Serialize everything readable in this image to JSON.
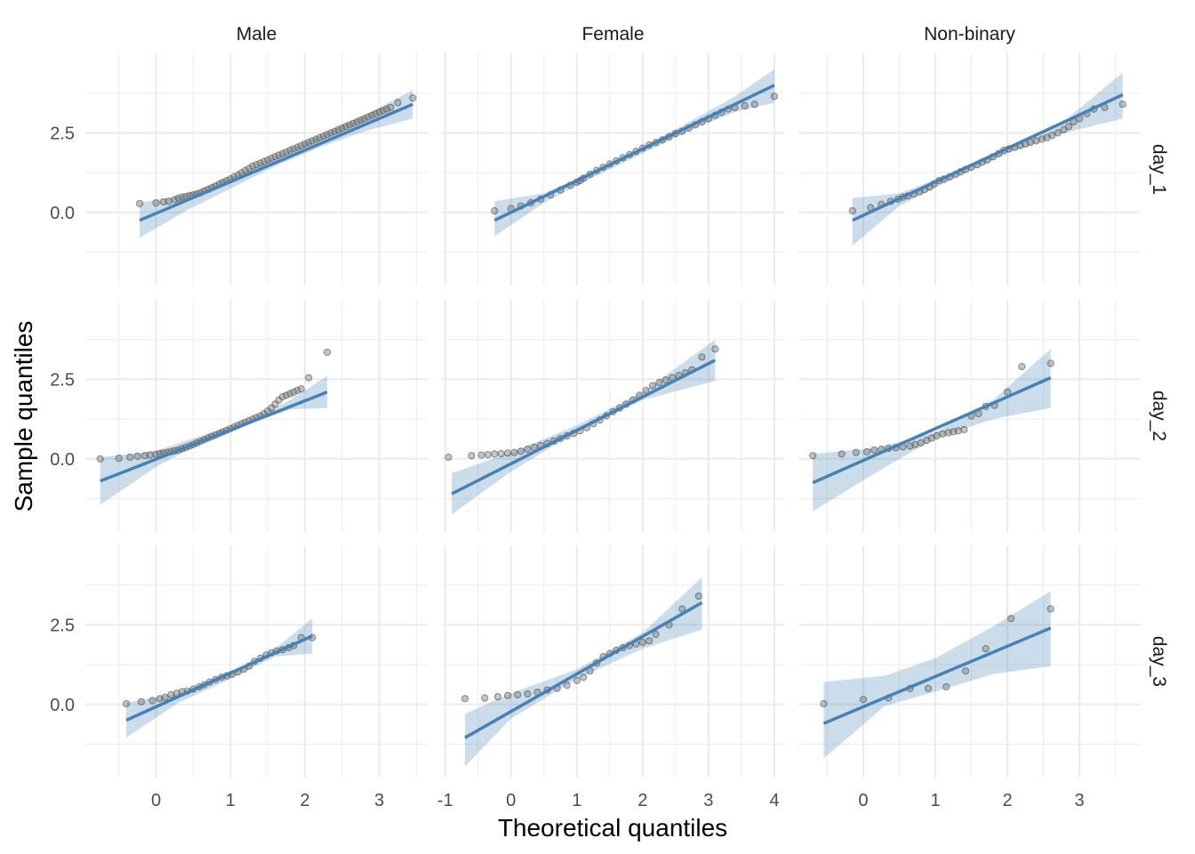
{
  "chart_data": {
    "type": "scatter",
    "subtype": "faceted-qq-plot",
    "xlabel": "Theoretical quantiles",
    "ylabel": "Sample quantiles",
    "col_facets": [
      "Male",
      "Female",
      "Non-binary"
    ],
    "row_facets": [
      "day_1",
      "day_2",
      "day_3"
    ],
    "grid": true,
    "free_x": true,
    "ylim": [
      -2.3,
      5.0
    ],
    "y_ticks": [
      0.0,
      2.5
    ],
    "y_tick_labels": [
      "0.0",
      "2.5"
    ],
    "colors": {
      "points": "#7f7f7f",
      "line": "#4682b4",
      "band": "#4682b4",
      "grid": "#ebebeb"
    },
    "columns": [
      {
        "xlim": [
          -0.95,
          3.65
        ],
        "x_ticks": [
          0,
          1,
          2,
          3
        ],
        "x_tick_labels": [
          "0",
          "1",
          "2",
          "3"
        ]
      },
      {
        "xlim": [
          -1.05,
          4.15
        ],
        "x_ticks": [
          -1,
          0,
          1,
          2,
          3,
          4
        ],
        "x_tick_labels": [
          "-1",
          "0",
          "1",
          "2",
          "3",
          "4"
        ]
      },
      {
        "xlim": [
          -0.9,
          3.85
        ],
        "x_ticks": [
          0,
          1,
          2,
          3
        ],
        "x_tick_labels": [
          "0",
          "1",
          "2",
          "3"
        ]
      }
    ],
    "panels": [
      {
        "col": "Male",
        "row": "day_1",
        "line": {
          "x": [
            -0.22,
            3.45
          ],
          "y": [
            -0.25,
            3.4
          ]
        },
        "band": {
          "x": [
            -0.22,
            0.4,
            1.0,
            1.6,
            2.2,
            2.8,
            3.45
          ],
          "lower": [
            -0.8,
            0.05,
            0.75,
            1.45,
            2.05,
            2.55,
            2.95
          ],
          "upper": [
            0.3,
            0.55,
            1.1,
            1.75,
            2.4,
            3.05,
            3.85
          ]
        },
        "points": {
          "x": [
            -0.22,
            0.0,
            0.1,
            0.17,
            0.25,
            0.3,
            0.35,
            0.4,
            0.45,
            0.5,
            0.55,
            0.6,
            0.65,
            0.7,
            0.75,
            0.8,
            0.85,
            0.9,
            0.95,
            1.0,
            1.05,
            1.1,
            1.15,
            1.2,
            1.25,
            1.3,
            1.35,
            1.4,
            1.45,
            1.5,
            1.55,
            1.6,
            1.65,
            1.7,
            1.75,
            1.8,
            1.85,
            1.9,
            1.95,
            2.0,
            2.05,
            2.1,
            2.15,
            2.2,
            2.25,
            2.3,
            2.35,
            2.4,
            2.45,
            2.5,
            2.55,
            2.6,
            2.65,
            2.7,
            2.75,
            2.8,
            2.85,
            2.9,
            2.95,
            3.0,
            3.05,
            3.1,
            3.15,
            3.25,
            3.45
          ],
          "y": [
            0.28,
            0.3,
            0.33,
            0.35,
            0.4,
            0.45,
            0.48,
            0.5,
            0.53,
            0.55,
            0.58,
            0.62,
            0.68,
            0.72,
            0.78,
            0.83,
            0.9,
            0.95,
            1.0,
            1.05,
            1.12,
            1.18,
            1.25,
            1.32,
            1.38,
            1.45,
            1.5,
            1.55,
            1.6,
            1.65,
            1.7,
            1.75,
            1.8,
            1.85,
            1.9,
            1.95,
            2.0,
            2.05,
            2.1,
            2.15,
            2.2,
            2.25,
            2.3,
            2.35,
            2.4,
            2.45,
            2.5,
            2.55,
            2.6,
            2.65,
            2.7,
            2.75,
            2.8,
            2.85,
            2.9,
            2.95,
            3.0,
            3.05,
            3.1,
            3.15,
            3.2,
            3.25,
            3.3,
            3.45,
            3.6
          ]
        }
      },
      {
        "col": "Female",
        "row": "day_1",
        "line": {
          "x": [
            -0.25,
            4.0
          ],
          "y": [
            -0.25,
            4.0
          ]
        },
        "band": {
          "x": [
            -0.25,
            0.5,
            1.2,
            2.0,
            2.8,
            3.4,
            4.0
          ],
          "lower": [
            -0.75,
            0.3,
            1.05,
            1.85,
            2.65,
            3.15,
            3.45
          ],
          "upper": [
            0.35,
            0.6,
            1.25,
            2.05,
            2.95,
            3.65,
            4.5
          ]
        },
        "points": {
          "x": [
            -0.25,
            0.0,
            0.15,
            0.3,
            0.45,
            0.6,
            0.75,
            0.9,
            1.0,
            1.05,
            1.1,
            1.2,
            1.3,
            1.4,
            1.5,
            1.6,
            1.7,
            1.8,
            1.9,
            2.0,
            2.1,
            2.2,
            2.3,
            2.4,
            2.5,
            2.6,
            2.7,
            2.8,
            2.9,
            3.0,
            3.1,
            3.2,
            3.3,
            3.4,
            3.55,
            3.7,
            4.0
          ],
          "y": [
            0.05,
            0.12,
            0.2,
            0.3,
            0.42,
            0.55,
            0.7,
            0.85,
            0.95,
            1.0,
            1.08,
            1.2,
            1.32,
            1.42,
            1.52,
            1.62,
            1.72,
            1.82,
            1.92,
            2.02,
            2.12,
            2.2,
            2.28,
            2.38,
            2.48,
            2.55,
            2.65,
            2.75,
            2.85,
            2.95,
            3.05,
            3.15,
            3.25,
            3.3,
            3.35,
            3.4,
            3.65
          ]
        }
      },
      {
        "col": "Non-binary",
        "row": "day_1",
        "line": {
          "x": [
            -0.15,
            3.6
          ],
          "y": [
            -0.25,
            3.7
          ]
        },
        "band": {
          "x": [
            -0.15,
            0.5,
            1.2,
            2.0,
            2.7,
            3.6
          ],
          "lower": [
            -1.05,
            0.2,
            1.0,
            1.85,
            2.45,
            2.95
          ],
          "upper": [
            0.45,
            0.6,
            1.2,
            2.05,
            2.7,
            4.4
          ]
        },
        "points": {
          "x": [
            -0.15,
            0.1,
            0.25,
            0.38,
            0.48,
            0.55,
            0.62,
            0.7,
            0.78,
            0.85,
            0.92,
            0.98,
            1.05,
            1.12,
            1.2,
            1.28,
            1.35,
            1.42,
            1.5,
            1.58,
            1.65,
            1.72,
            1.8,
            1.88,
            1.95,
            2.02,
            2.1,
            2.18,
            2.25,
            2.32,
            2.4,
            2.48,
            2.55,
            2.62,
            2.7,
            2.78,
            2.85,
            2.92,
            3.0,
            3.1,
            3.2,
            3.35,
            3.6
          ],
          "y": [
            0.05,
            0.15,
            0.25,
            0.35,
            0.42,
            0.48,
            0.52,
            0.58,
            0.65,
            0.72,
            0.8,
            0.9,
            1.0,
            1.05,
            1.12,
            1.2,
            1.28,
            1.35,
            1.42,
            1.5,
            1.58,
            1.65,
            1.75,
            1.85,
            1.95,
            2.0,
            2.05,
            2.1,
            2.15,
            2.2,
            2.25,
            2.3,
            2.35,
            2.42,
            2.5,
            2.6,
            2.7,
            2.85,
            2.95,
            3.1,
            3.25,
            3.3,
            3.4
          ]
        }
      },
      {
        "col": "Male",
        "row": "day_2",
        "line": {
          "x": [
            -0.75,
            2.3
          ],
          "y": [
            -0.7,
            2.1
          ]
        },
        "band": {
          "x": [
            -0.75,
            0.0,
            0.7,
            1.2,
            1.8,
            2.3
          ],
          "lower": [
            -1.45,
            -0.25,
            0.6,
            1.05,
            1.55,
            1.6
          ],
          "upper": [
            0.05,
            0.25,
            0.8,
            1.15,
            1.85,
            2.6
          ]
        },
        "points": {
          "x": [
            -0.75,
            -0.5,
            -0.35,
            -0.25,
            -0.15,
            -0.08,
            0.0,
            0.05,
            0.1,
            0.15,
            0.2,
            0.25,
            0.3,
            0.35,
            0.4,
            0.45,
            0.5,
            0.55,
            0.6,
            0.65,
            0.7,
            0.75,
            0.8,
            0.85,
            0.9,
            0.95,
            1.0,
            1.05,
            1.1,
            1.15,
            1.2,
            1.25,
            1.3,
            1.35,
            1.4,
            1.45,
            1.5,
            1.55,
            1.6,
            1.65,
            1.7,
            1.75,
            1.8,
            1.85,
            1.9,
            1.95,
            2.05,
            2.3
          ],
          "y": [
            0.0,
            0.02,
            0.05,
            0.08,
            0.1,
            0.12,
            0.14,
            0.16,
            0.18,
            0.2,
            0.22,
            0.25,
            0.28,
            0.32,
            0.36,
            0.4,
            0.45,
            0.5,
            0.55,
            0.6,
            0.65,
            0.7,
            0.75,
            0.8,
            0.85,
            0.9,
            0.95,
            1.0,
            1.05,
            1.1,
            1.15,
            1.2,
            1.25,
            1.3,
            1.35,
            1.42,
            1.5,
            1.6,
            1.72,
            1.85,
            1.95,
            2.0,
            2.05,
            2.1,
            2.15,
            2.2,
            2.55,
            3.35
          ]
        }
      },
      {
        "col": "Female",
        "row": "day_2",
        "line": {
          "x": [
            -0.9,
            3.1
          ],
          "y": [
            -1.1,
            3.1
          ]
        },
        "band": {
          "x": [
            -0.9,
            0.0,
            1.0,
            2.0,
            3.1
          ],
          "lower": [
            -1.75,
            -0.4,
            0.85,
            1.85,
            2.45
          ],
          "upper": [
            -0.45,
            0.2,
            1.05,
            2.1,
            3.75
          ]
        },
        "points": {
          "x": [
            -0.95,
            -0.6,
            -0.45,
            -0.35,
            -0.25,
            -0.15,
            -0.05,
            0.05,
            0.15,
            0.25,
            0.35,
            0.45,
            0.55,
            0.65,
            0.75,
            0.85,
            0.95,
            1.05,
            1.15,
            1.25,
            1.35,
            1.45,
            1.55,
            1.65,
            1.75,
            1.85,
            1.95,
            2.05,
            2.15,
            2.25,
            2.35,
            2.45,
            2.55,
            2.65,
            2.75,
            2.9,
            3.1
          ],
          "y": [
            0.05,
            0.1,
            0.12,
            0.13,
            0.15,
            0.16,
            0.18,
            0.2,
            0.24,
            0.3,
            0.36,
            0.42,
            0.48,
            0.56,
            0.64,
            0.72,
            0.8,
            0.88,
            0.98,
            1.1,
            1.22,
            1.35,
            1.48,
            1.6,
            1.72,
            1.85,
            2.0,
            2.15,
            2.3,
            2.4,
            2.48,
            2.55,
            2.62,
            2.7,
            2.8,
            3.2,
            3.45
          ]
        }
      },
      {
        "col": "Non-binary",
        "row": "day_2",
        "line": {
          "x": [
            -0.7,
            2.6
          ],
          "y": [
            -0.75,
            2.55
          ]
        },
        "band": {
          "x": [
            -0.7,
            0.2,
            1.0,
            1.8,
            2.6
          ],
          "lower": [
            -1.65,
            -0.4,
            0.65,
            1.25,
            1.6
          ],
          "upper": [
            0.15,
            0.35,
            0.85,
            1.85,
            3.45
          ]
        },
        "points": {
          "x": [
            -0.7,
            -0.3,
            -0.1,
            0.05,
            0.15,
            0.25,
            0.35,
            0.45,
            0.55,
            0.65,
            0.72,
            0.8,
            0.88,
            0.95,
            1.02,
            1.1,
            1.18,
            1.25,
            1.32,
            1.4,
            1.5,
            1.6,
            1.7,
            1.82,
            2.0,
            2.2,
            2.6
          ],
          "y": [
            0.1,
            0.15,
            0.2,
            0.22,
            0.28,
            0.3,
            0.33,
            0.35,
            0.38,
            0.4,
            0.45,
            0.5,
            0.58,
            0.65,
            0.72,
            0.78,
            0.82,
            0.85,
            0.88,
            0.92,
            1.35,
            1.42,
            1.65,
            1.68,
            2.1,
            2.9,
            3.0
          ]
        }
      },
      {
        "col": "Male",
        "row": "day_3",
        "line": {
          "x": [
            -0.4,
            2.1
          ],
          "y": [
            -0.5,
            2.15
          ]
        },
        "band": {
          "x": [
            -0.4,
            0.3,
            1.0,
            1.6,
            2.1
          ],
          "lower": [
            -1.05,
            0.05,
            0.8,
            1.5,
            1.6
          ],
          "upper": [
            0.05,
            0.35,
            1.0,
            1.75,
            2.7
          ]
        },
        "points": {
          "x": [
            -0.4,
            -0.2,
            -0.05,
            0.05,
            0.12,
            0.2,
            0.28,
            0.35,
            0.42,
            0.5,
            0.58,
            0.65,
            0.72,
            0.8,
            0.88,
            0.95,
            1.02,
            1.1,
            1.18,
            1.25,
            1.32,
            1.4,
            1.48,
            1.55,
            1.62,
            1.7,
            1.78,
            1.85,
            1.95,
            2.1
          ],
          "y": [
            0.02,
            0.08,
            0.12,
            0.18,
            0.22,
            0.3,
            0.35,
            0.4,
            0.42,
            0.48,
            0.55,
            0.62,
            0.7,
            0.78,
            0.85,
            0.9,
            0.95,
            1.02,
            1.1,
            1.2,
            1.35,
            1.45,
            1.55,
            1.62,
            1.68,
            1.72,
            1.78,
            1.85,
            2.1,
            2.1
          ]
        }
      },
      {
        "col": "Female",
        "row": "day_3",
        "line": {
          "x": [
            -0.7,
            2.9
          ],
          "y": [
            -1.05,
            3.2
          ]
        },
        "band": {
          "x": [
            -0.7,
            0.0,
            1.0,
            2.0,
            2.9
          ],
          "lower": [
            -1.95,
            -0.45,
            0.8,
            1.75,
            2.35
          ],
          "upper": [
            -0.3,
            0.35,
            1.1,
            2.25,
            4.0
          ]
        },
        "points": {
          "x": [
            -0.7,
            -0.4,
            -0.2,
            -0.05,
            0.1,
            0.25,
            0.4,
            0.55,
            0.7,
            0.85,
            1.0,
            1.1,
            1.2,
            1.3,
            1.4,
            1.5,
            1.6,
            1.7,
            1.8,
            1.9,
            2.0,
            2.1,
            2.2,
            2.4,
            2.6,
            2.85
          ],
          "y": [
            0.18,
            0.2,
            0.24,
            0.28,
            0.3,
            0.33,
            0.38,
            0.45,
            0.5,
            0.6,
            0.75,
            0.85,
            1.05,
            1.3,
            1.5,
            1.6,
            1.7,
            1.78,
            1.85,
            1.9,
            1.95,
            2.0,
            2.2,
            2.5,
            3.0,
            3.4
          ]
        }
      },
      {
        "col": "Non-binary",
        "row": "day_3",
        "line": {
          "x": [
            -0.55,
            2.6
          ],
          "y": [
            -0.6,
            2.4
          ]
        },
        "band": {
          "x": [
            -0.55,
            0.3,
            1.0,
            1.8,
            2.6
          ],
          "lower": [
            -1.7,
            -0.05,
            0.4,
            0.95,
            1.2
          ],
          "upper": [
            0.7,
            0.9,
            1.45,
            2.45,
            3.55
          ]
        },
        "points": {
          "x": [
            -0.55,
            0.0,
            0.35,
            0.65,
            0.9,
            1.15,
            1.42,
            1.7,
            2.05,
            2.6
          ],
          "y": [
            0.02,
            0.15,
            0.2,
            0.5,
            0.5,
            0.55,
            1.05,
            1.75,
            2.7,
            3.0
          ]
        }
      }
    ]
  }
}
